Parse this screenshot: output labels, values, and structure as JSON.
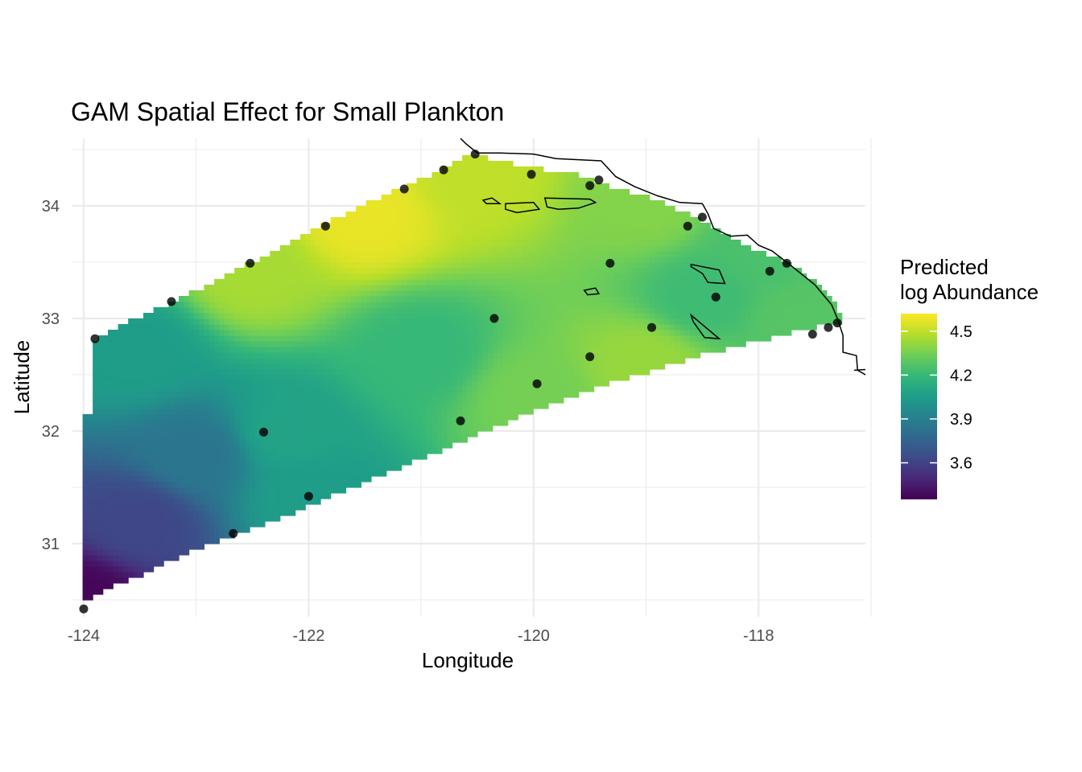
{
  "chart_data": {
    "type": "heatmap",
    "title": "GAM Spatial Effect for Small Plankton",
    "xlabel": "Longitude",
    "ylabel": "Latitude",
    "xlim": [
      -124.1,
      -117.05
    ],
    "ylim": [
      30.35,
      34.6
    ],
    "x_ticks": [
      {
        "value": -124,
        "label": "-124"
      },
      {
        "value": -122,
        "label": "-122"
      },
      {
        "value": -120,
        "label": "-120"
      },
      {
        "value": -118,
        "label": "-118"
      }
    ],
    "y_ticks": [
      {
        "value": 31,
        "label": "31"
      },
      {
        "value": 32,
        "label": "32"
      },
      {
        "value": 33,
        "label": "33"
      },
      {
        "value": 34,
        "label": "34"
      }
    ],
    "grid": true,
    "colorscale": "viridis",
    "legend": {
      "title_line1": "Predicted",
      "title_line2": "log Abundance",
      "placement": "right",
      "range": [
        3.35,
        4.62
      ],
      "ticks": [
        {
          "value": 3.6,
          "label": "3.6"
        },
        {
          "value": 3.9,
          "label": "3.9"
        },
        {
          "value": 4.2,
          "label": "4.2"
        },
        {
          "value": 4.5,
          "label": "4.5"
        }
      ]
    },
    "region_polygon": [
      [
        -124.03,
        30.45
      ],
      [
        -123.9,
        30.55
      ],
      [
        -123.5,
        30.72
      ],
      [
        -123.0,
        30.95
      ],
      [
        -122.5,
        31.13
      ],
      [
        -122.0,
        31.33
      ],
      [
        -121.5,
        31.55
      ],
      [
        -121.0,
        31.75
      ],
      [
        -120.5,
        31.97
      ],
      [
        -120.0,
        32.18
      ],
      [
        -119.5,
        32.37
      ],
      [
        -119.0,
        32.52
      ],
      [
        -118.5,
        32.68
      ],
      [
        -118.0,
        32.8
      ],
      [
        -117.6,
        32.9
      ],
      [
        -117.27,
        32.97
      ],
      [
        -117.3,
        33.13
      ],
      [
        -117.45,
        33.3
      ],
      [
        -117.7,
        33.48
      ],
      [
        -118.0,
        33.6
      ],
      [
        -118.25,
        33.72
      ],
      [
        -118.55,
        33.9
      ],
      [
        -118.9,
        34.05
      ],
      [
        -119.3,
        34.17
      ],
      [
        -119.6,
        34.28
      ],
      [
        -119.9,
        34.32
      ],
      [
        -120.3,
        34.4
      ],
      [
        -120.55,
        34.47
      ],
      [
        -120.8,
        34.33
      ],
      [
        -121.2,
        34.15
      ],
      [
        -121.85,
        33.85
      ],
      [
        -122.5,
        33.5
      ],
      [
        -123.2,
        33.15
      ],
      [
        -123.65,
        32.95
      ],
      [
        -123.9,
        32.8
      ],
      [
        -123.9,
        32.15
      ],
      [
        -124.03,
        32.15
      ]
    ],
    "field_anchors": [
      {
        "lon": -124.0,
        "lat": 30.5,
        "value": 3.37
      },
      {
        "lon": -123.5,
        "lat": 31.2,
        "value": 3.62
      },
      {
        "lon": -123.0,
        "lat": 31.8,
        "value": 3.85
      },
      {
        "lon": -122.2,
        "lat": 32.0,
        "value": 4.08
      },
      {
        "lon": -123.5,
        "lat": 32.7,
        "value": 4.05
      },
      {
        "lon": -122.5,
        "lat": 33.4,
        "value": 4.45
      },
      {
        "lon": -121.5,
        "lat": 33.9,
        "value": 4.58
      },
      {
        "lon": -120.5,
        "lat": 34.3,
        "value": 4.5
      },
      {
        "lon": -121.0,
        "lat": 32.7,
        "value": 4.2
      },
      {
        "lon": -120.0,
        "lat": 32.3,
        "value": 4.35
      },
      {
        "lon": -119.0,
        "lat": 32.6,
        "value": 4.42
      },
      {
        "lon": -118.5,
        "lat": 33.2,
        "value": 4.22
      },
      {
        "lon": -117.6,
        "lat": 33.0,
        "value": 4.28
      },
      {
        "lon": -119.0,
        "lat": 34.0,
        "value": 4.38
      },
      {
        "lon": -118.0,
        "lat": 33.6,
        "value": 4.25
      },
      {
        "lon": -122.0,
        "lat": 31.4,
        "value": 4.05
      }
    ],
    "stations": [
      {
        "lon": -124.0,
        "lat": 30.42
      },
      {
        "lon": -123.9,
        "lat": 32.82
      },
      {
        "lon": -123.22,
        "lat": 33.15
      },
      {
        "lon": -122.52,
        "lat": 33.49
      },
      {
        "lon": -121.85,
        "lat": 33.82
      },
      {
        "lon": -121.15,
        "lat": 34.15
      },
      {
        "lon": -120.8,
        "lat": 34.32
      },
      {
        "lon": -120.52,
        "lat": 34.46
      },
      {
        "lon": -120.02,
        "lat": 34.28
      },
      {
        "lon": -119.5,
        "lat": 34.18
      },
      {
        "lon": -119.42,
        "lat": 34.23
      },
      {
        "lon": -118.63,
        "lat": 33.82
      },
      {
        "lon": -118.5,
        "lat": 33.9
      },
      {
        "lon": -119.32,
        "lat": 33.49
      },
      {
        "lon": -117.9,
        "lat": 33.42
      },
      {
        "lon": -117.75,
        "lat": 33.49
      },
      {
        "lon": -118.38,
        "lat": 33.19
      },
      {
        "lon": -118.95,
        "lat": 32.92
      },
      {
        "lon": -117.3,
        "lat": 32.96
      },
      {
        "lon": -117.38,
        "lat": 32.92
      },
      {
        "lon": -117.52,
        "lat": 32.86
      },
      {
        "lon": -120.35,
        "lat": 33.0
      },
      {
        "lon": -119.5,
        "lat": 32.66
      },
      {
        "lon": -119.97,
        "lat": 32.42
      },
      {
        "lon": -120.65,
        "lat": 32.09
      },
      {
        "lon": -122.4,
        "lat": 31.99
      },
      {
        "lon": -122.0,
        "lat": 31.42
      },
      {
        "lon": -122.67,
        "lat": 31.09
      }
    ],
    "coastline": [
      [
        -120.65,
        34.6
      ],
      [
        -120.6,
        34.55
      ],
      [
        -120.5,
        34.47
      ],
      [
        -120.3,
        34.47
      ],
      [
        -120.0,
        34.46
      ],
      [
        -119.8,
        34.42
      ],
      [
        -119.6,
        34.41
      ],
      [
        -119.4,
        34.4
      ],
      [
        -119.27,
        34.26
      ],
      [
        -119.1,
        34.17
      ],
      [
        -118.9,
        34.09
      ],
      [
        -118.7,
        34.03
      ],
      [
        -118.5,
        34.02
      ],
      [
        -118.45,
        33.93
      ],
      [
        -118.4,
        33.8
      ],
      [
        -118.25,
        33.73
      ],
      [
        -118.1,
        33.74
      ],
      [
        -118.0,
        33.65
      ],
      [
        -117.88,
        33.6
      ],
      [
        -117.7,
        33.46
      ],
      [
        -117.5,
        33.3
      ],
      [
        -117.35,
        33.12
      ],
      [
        -117.3,
        33.0
      ],
      [
        -117.25,
        32.85
      ],
      [
        -117.25,
        32.7
      ],
      [
        -117.13,
        32.67
      ],
      [
        -117.12,
        32.54
      ],
      [
        -117.05,
        32.5
      ],
      [
        -117.0,
        32.45
      ]
    ],
    "coastline_extra": [
      [
        -117.15,
        32.54
      ],
      [
        -117.0,
        32.55
      ]
    ],
    "islands": [
      [
        [
          -120.45,
          34.05
        ],
        [
          -120.37,
          34.07
        ],
        [
          -120.3,
          34.02
        ],
        [
          -120.42,
          34.02
        ]
      ],
      [
        [
          -120.25,
          34.02
        ],
        [
          -120.0,
          34.03
        ],
        [
          -119.95,
          33.97
        ],
        [
          -120.15,
          33.94
        ],
        [
          -120.25,
          33.97
        ]
      ],
      [
        [
          -119.9,
          34.07
        ],
        [
          -119.5,
          34.06
        ],
        [
          -119.45,
          34.03
        ],
        [
          -119.6,
          33.98
        ],
        [
          -119.78,
          33.97
        ],
        [
          -119.88,
          33.99
        ]
      ],
      [
        [
          -119.55,
          33.25
        ],
        [
          -119.45,
          33.27
        ],
        [
          -119.42,
          33.22
        ],
        [
          -119.52,
          33.21
        ]
      ],
      [
        [
          -118.6,
          33.48
        ],
        [
          -118.35,
          33.43
        ],
        [
          -118.3,
          33.31
        ],
        [
          -118.45,
          33.32
        ],
        [
          -118.5,
          33.4
        ],
        [
          -118.6,
          33.46
        ]
      ],
      [
        [
          -118.6,
          33.03
        ],
        [
          -118.35,
          32.82
        ],
        [
          -118.48,
          32.83
        ],
        [
          -118.58,
          32.97
        ]
      ]
    ]
  }
}
